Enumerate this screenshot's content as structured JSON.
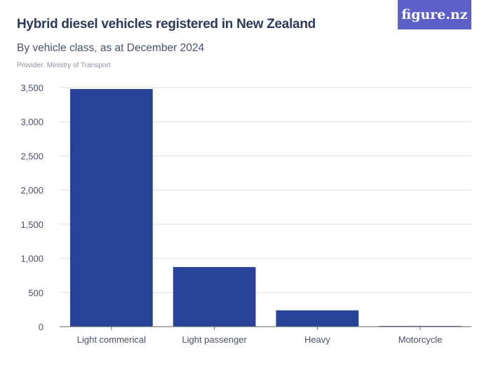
{
  "header": {
    "title": "Hybrid diesel vehicles registered in New Zealand",
    "subtitle": "By vehicle class, as at December 2024",
    "provider": "Provider: Ministry of Transport",
    "logo": "figure.nz"
  },
  "colors": {
    "bar": "#27439a",
    "logo_bg": "#5b5fc7",
    "text": "#2d3a5c"
  },
  "chart_data": {
    "type": "bar",
    "title": "Hybrid diesel vehicles registered in New Zealand",
    "subtitle": "By vehicle class, as at December 2024",
    "xlabel": "",
    "ylabel": "",
    "categories": [
      "Light commerical",
      "Light passenger",
      "Heavy",
      "Motorcycle"
    ],
    "values": [
      3480,
      873,
      239,
      10
    ],
    "ylim": [
      0,
      3500
    ],
    "yticks": [
      0,
      500,
      1000,
      1500,
      2000,
      2500,
      3000,
      3500
    ],
    "ytick_labels": [
      "0",
      "500",
      "1,000",
      "1,500",
      "2,000",
      "2,500",
      "3,000",
      "3,500"
    ],
    "grid": true
  }
}
